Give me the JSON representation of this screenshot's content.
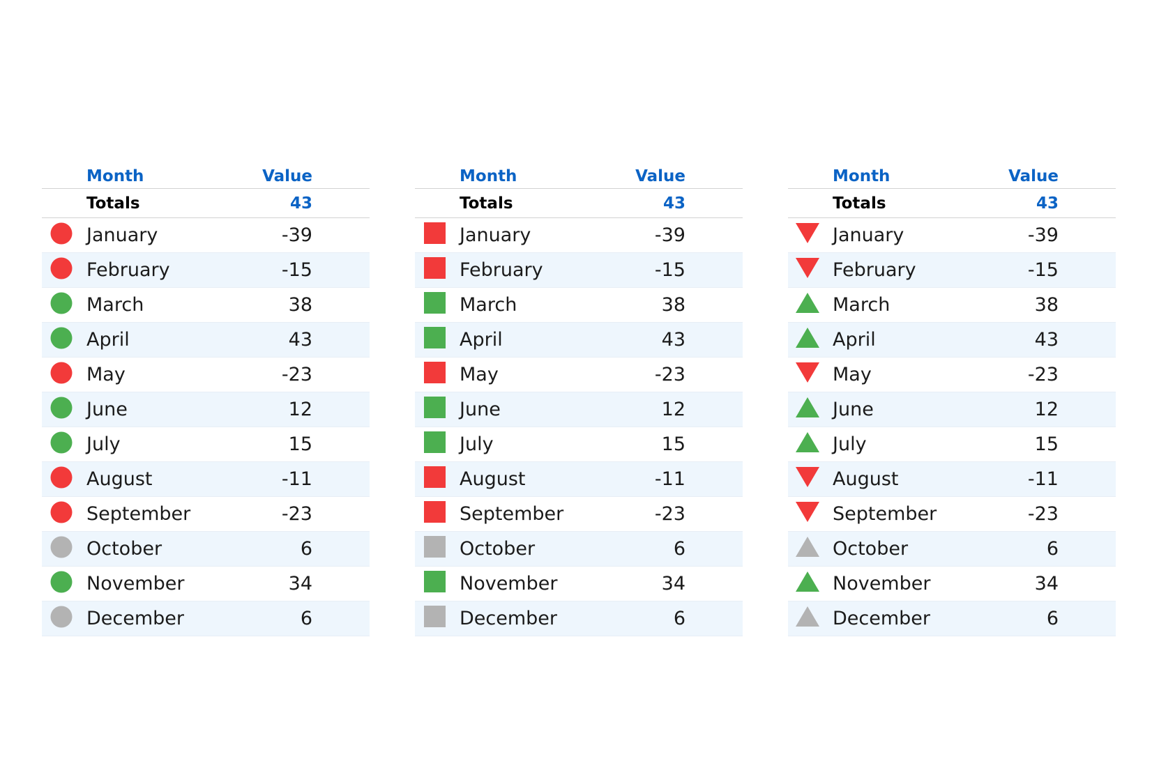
{
  "headers": {
    "month": "Month",
    "value": "Value"
  },
  "totals": {
    "label": "Totals",
    "value": "43"
  },
  "colors": {
    "header_text": "#0b63c5",
    "positive": "#4caf50",
    "negative": "#f23a3a",
    "neutral": "#b3b3b3",
    "alt_row": "#eef6fd"
  },
  "grids": [
    {
      "indicator_icon": "circle-icon"
    },
    {
      "indicator_icon": "square-icon"
    },
    {
      "indicator_icon": "triangle-icon"
    }
  ],
  "rows": [
    {
      "month": "January",
      "value": "-39",
      "status": "negative"
    },
    {
      "month": "February",
      "value": "-15",
      "status": "negative"
    },
    {
      "month": "March",
      "value": "38",
      "status": "positive"
    },
    {
      "month": "April",
      "value": "43",
      "status": "positive"
    },
    {
      "month": "May",
      "value": "-23",
      "status": "negative"
    },
    {
      "month": "June",
      "value": "12",
      "status": "positive"
    },
    {
      "month": "July",
      "value": "15",
      "status": "positive"
    },
    {
      "month": "August",
      "value": "-11",
      "status": "negative"
    },
    {
      "month": "September",
      "value": "-23",
      "status": "negative"
    },
    {
      "month": "October",
      "value": "6",
      "status": "neutral"
    },
    {
      "month": "November",
      "value": "34",
      "status": "positive"
    },
    {
      "month": "December",
      "value": "6",
      "status": "neutral"
    }
  ]
}
